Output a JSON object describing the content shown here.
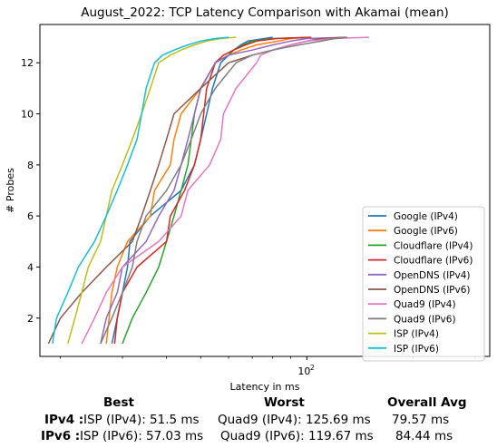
{
  "chart_data": {
    "type": "line",
    "title": "August_2022: TCP Latency Comparison with Akamai (mean)",
    "xlabel": "Latency in ms",
    "ylabel": "# Probes",
    "xscale": "log",
    "xlim": [
      17.5,
      330
    ],
    "ylim": [
      0.5,
      13.5
    ],
    "xticks": [
      {
        "value": 100,
        "label": "10"
      }
    ],
    "xtick_sup": "2",
    "yticks": [
      2,
      4,
      6,
      8,
      10,
      12
    ],
    "grid": false,
    "legend_position": "lower-right",
    "series": [
      {
        "name": "Google (IPv4)",
        "color": "#1f77b4",
        "x": [
          28,
          29,
          30,
          31,
          31.5,
          36,
          44,
          48,
          50,
          52,
          54,
          57,
          60,
          62,
          65,
          68,
          80
        ],
        "y": [
          1,
          2,
          3,
          4,
          5,
          6,
          7,
          8,
          9,
          10,
          11,
          12,
          12.3,
          12.5,
          12.7,
          12.85,
          13
        ]
      },
      {
        "name": "Google (IPv6)",
        "color": "#ff7f0e",
        "x": [
          27,
          27.5,
          28,
          29,
          31,
          36,
          37,
          41,
          42,
          44,
          50,
          55,
          60,
          65,
          72,
          83,
          90,
          100
        ],
        "y": [
          1,
          2,
          3,
          4,
          5,
          6,
          7,
          8,
          9,
          10,
          11,
          12,
          12.3,
          12.5,
          12.7,
          12.85,
          12.95,
          13
        ]
      },
      {
        "name": "Cloudflare (IPv4)",
        "color": "#2ca02c",
        "x": [
          30,
          32,
          35,
          38,
          40,
          42,
          44,
          46,
          47,
          48,
          50,
          55,
          60,
          62,
          66,
          70,
          80,
          102
        ],
        "y": [
          1,
          2,
          3,
          4,
          5,
          6,
          7,
          8,
          9,
          10,
          11,
          12,
          12.3,
          12.5,
          12.7,
          12.85,
          12.95,
          13
        ]
      },
      {
        "name": "Cloudflare (IPv6)",
        "color": "#d62728",
        "x": [
          28.5,
          29,
          30,
          33,
          40,
          41,
          45,
          48,
          50,
          51,
          52,
          55,
          58,
          62,
          67,
          72,
          82,
          103
        ],
        "y": [
          1,
          2,
          3,
          4,
          5,
          6,
          7,
          8,
          9,
          10,
          11,
          12,
          12.3,
          12.5,
          12.7,
          12.85,
          12.95,
          13
        ]
      },
      {
        "name": "OpenDNS (IPv4)",
        "color": "#9467bd",
        "x": [
          26,
          27,
          29,
          30,
          35,
          38,
          42,
          44,
          46,
          48,
          50,
          55,
          60,
          70,
          80,
          90,
          100,
          130
        ],
        "y": [
          1,
          2,
          3,
          4,
          5,
          6,
          7,
          8,
          9,
          10,
          11,
          12,
          12.3,
          12.5,
          12.7,
          12.85,
          12.95,
          13
        ]
      },
      {
        "name": "OpenDNS (IPv6)",
        "color": "#8c564b",
        "x": [
          18.5,
          20,
          23,
          27,
          32,
          34,
          36,
          38,
          40,
          42,
          50,
          60,
          70,
          80,
          90,
          100,
          110,
          128
        ],
        "y": [
          1,
          2,
          3,
          4,
          5,
          6,
          7,
          8,
          9,
          10,
          11,
          12,
          12.3,
          12.5,
          12.7,
          12.85,
          12.95,
          13
        ]
      },
      {
        "name": "Quad9 (IPv4)",
        "color": "#e377c2",
        "x": [
          23,
          25,
          27,
          30,
          38,
          44,
          46,
          53,
          57,
          58,
          63,
          72,
          74,
          80,
          90,
          100,
          120,
          150
        ],
        "y": [
          1,
          2,
          3,
          4,
          5,
          6,
          7,
          8,
          9,
          10,
          11,
          12,
          12.3,
          12.5,
          12.7,
          12.85,
          12.95,
          13
        ]
      },
      {
        "name": "Quad9 (IPv6)",
        "color": "#7f7f7f",
        "x": [
          26,
          28,
          30,
          32,
          33,
          35,
          40,
          44,
          47,
          50,
          55,
          63,
          70,
          80,
          95,
          110,
          120,
          130
        ],
        "y": [
          1,
          2,
          3,
          4,
          5,
          6,
          7,
          8,
          9,
          10,
          11,
          12,
          12.3,
          12.5,
          12.7,
          12.85,
          12.95,
          13
        ]
      },
      {
        "name": "ISP (IPv4)",
        "color": "#bcbd22",
        "x": [
          21,
          22,
          23,
          24,
          26,
          27,
          28,
          30,
          32,
          34,
          36,
          38,
          41,
          44,
          48,
          52,
          57,
          63
        ],
        "y": [
          1,
          2,
          3,
          4,
          5,
          6,
          7,
          8,
          9,
          10,
          11,
          12,
          12.3,
          12.5,
          12.7,
          12.85,
          12.95,
          13
        ]
      },
      {
        "name": "ISP (IPv6)",
        "color": "#17becf",
        "x": [
          19,
          19.5,
          21,
          22.5,
          25,
          27,
          29,
          31,
          33,
          34,
          35,
          37,
          39,
          42,
          46,
          50,
          55,
          60
        ],
        "y": [
          1,
          2,
          3,
          4,
          5,
          6,
          7,
          8,
          9,
          10,
          11,
          12,
          12.3,
          12.5,
          12.7,
          12.85,
          12.95,
          13
        ]
      }
    ]
  },
  "summary": {
    "headers": {
      "best": "Best",
      "worst": "Worst",
      "avg": "Overall Avg"
    },
    "rows": [
      {
        "label": "IPv4 :",
        "best": "ISP (IPv4): 51.5 ms",
        "worst": "Quad9 (IPv4): 125.69 ms",
        "avg": "79.57 ms"
      },
      {
        "label": "IPv6 :",
        "best": "ISP (IPv6): 57.03 ms",
        "worst": "Quad9 (IPv6): 119.67 ms",
        "avg": "84.44 ms"
      }
    ]
  }
}
